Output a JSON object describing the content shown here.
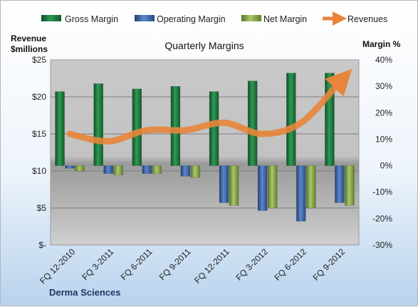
{
  "chart_data": {
    "type": "bar",
    "title": "Quarterly Margins",
    "company": "Derma Sciences",
    "categories": [
      "FQ 12-2010",
      "FQ 3-2011",
      "FQ 6-2011",
      "FQ 9-2011",
      "FQ 12-2011",
      "FQ 3-2012",
      "FQ 6-2012",
      "FQ 9-2012"
    ],
    "series": [
      {
        "name": "Gross Margin",
        "axis": "right",
        "unit": "%",
        "color": "#1e7a3e",
        "values": [
          28,
          31,
          29,
          30,
          28,
          32,
          35,
          35
        ]
      },
      {
        "name": "Operating Margin",
        "axis": "right",
        "unit": "%",
        "color": "#3f6bb0",
        "values": [
          -1,
          -3,
          -3,
          -4,
          -14,
          -17,
          -21,
          -14
        ]
      },
      {
        "name": "Net Margin",
        "axis": "right",
        "unit": "%",
        "color": "#8db045",
        "values": [
          -2,
          -3.5,
          -3,
          -4.5,
          -15,
          -16,
          -16,
          -15
        ]
      },
      {
        "name": "Revenues",
        "type": "line",
        "axis": "left",
        "unit": "$ millions",
        "color": "#e8853a",
        "values": [
          15,
          14,
          15.5,
          15.5,
          16.5,
          15,
          16.5,
          22
        ]
      }
    ],
    "y_left": {
      "label_line1": "Revenue",
      "label_line2": "$millions",
      "min": 0,
      "max": 25,
      "ticks": [
        25,
        20,
        15,
        10,
        5,
        0
      ],
      "tick_labels": [
        "$25",
        "$20",
        "$15",
        "$10",
        "$5",
        "$-"
      ]
    },
    "y_right": {
      "label": "Margin %",
      "min": -30,
      "max": 40,
      "ticks": [
        40,
        30,
        20,
        10,
        0,
        -10,
        -20,
        -30
      ],
      "tick_labels": [
        "40%",
        "30%",
        "20%",
        "10%",
        "0%",
        "-10%",
        "-20%",
        "-30%"
      ]
    },
    "legend_position": "top",
    "grid": true
  }
}
